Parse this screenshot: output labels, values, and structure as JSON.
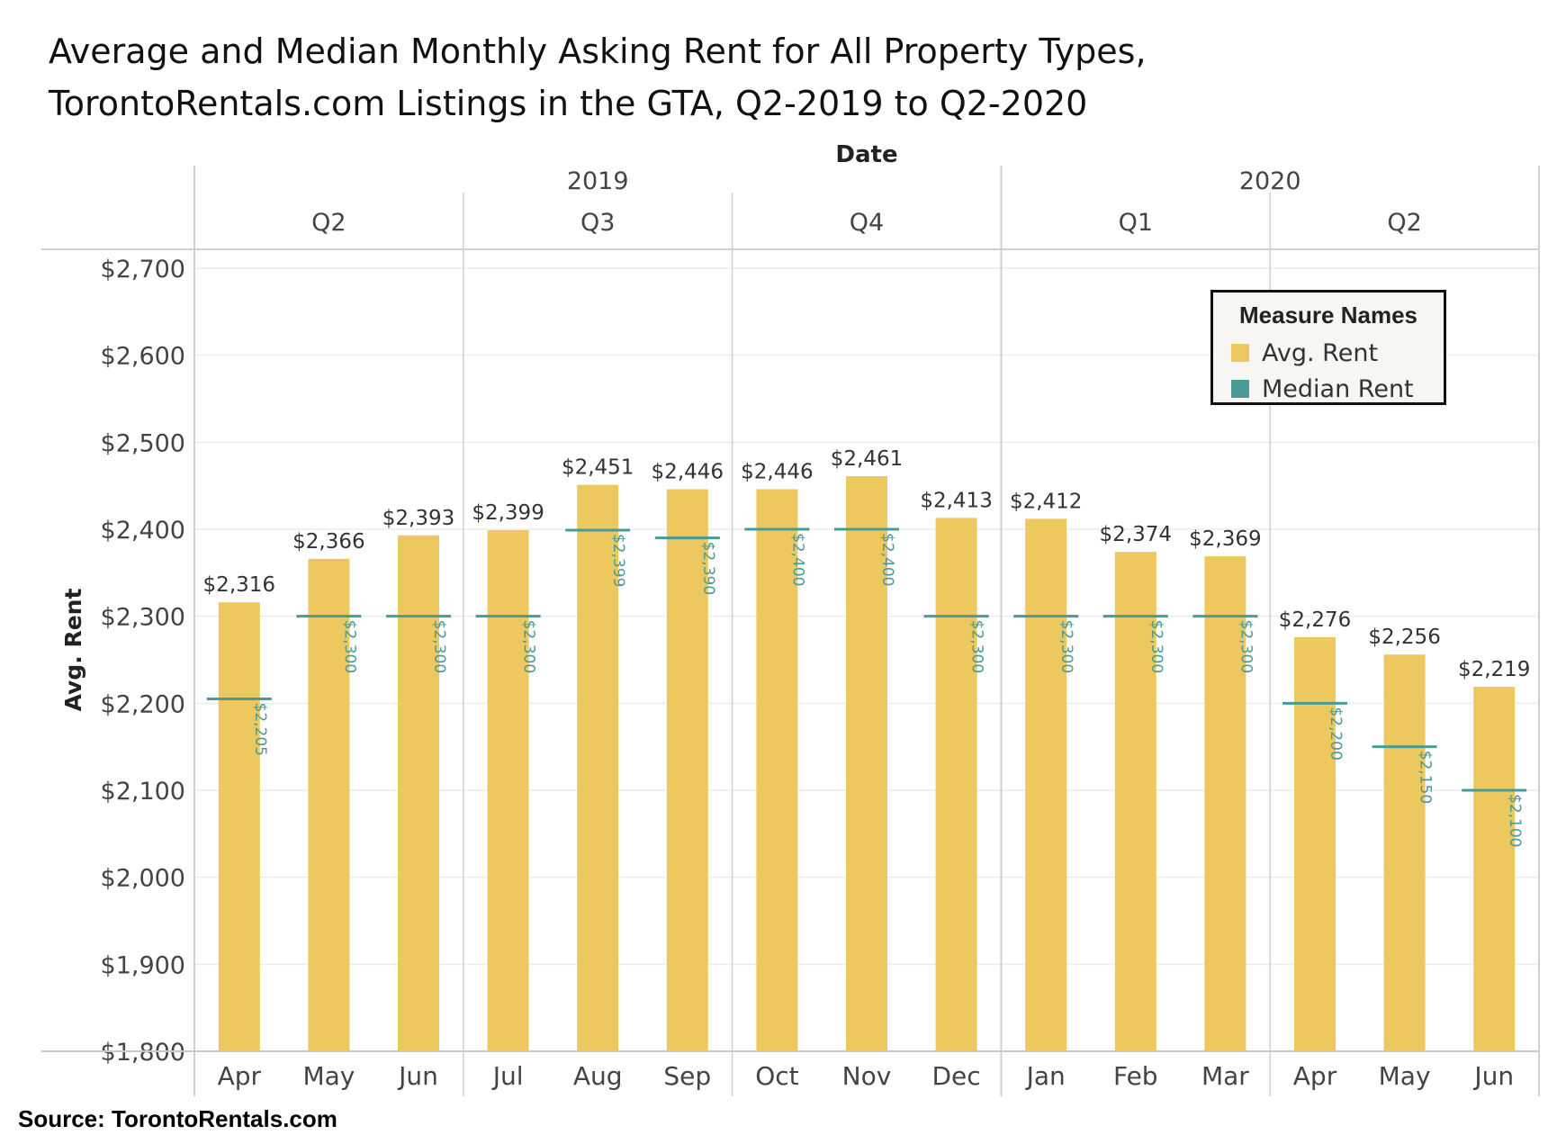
{
  "title_line1": "Average and Median Monthly Asking Rent for All Property Types,",
  "title_line2": "TorontoRentals.com Listings in the GTA, Q2-2019 to Q2-2020",
  "source": "Source: TorontoRentals.com",
  "colors": {
    "avg": "#EDC85E",
    "median": "#4A9A96",
    "grid": "#dddddd",
    "text": "#333333"
  },
  "legend": {
    "title": "Measure Names",
    "items": [
      "Avg. Rent",
      "Median Rent"
    ]
  },
  "chart_data": {
    "type": "bar",
    "title": "Average and Median Monthly Asking Rent for All Property Types, TorontoRentals.com Listings in the GTA, Q2-2019 to Q2-2020",
    "header_label": "Date",
    "ylabel": "Avg. Rent",
    "ylim": [
      1800,
      2700
    ],
    "yticks": [
      1800,
      1900,
      2000,
      2100,
      2200,
      2300,
      2400,
      2500,
      2600,
      2700
    ],
    "ytick_labels": [
      "$1,800",
      "$1,900",
      "$2,000",
      "$2,100",
      "$2,200",
      "$2,300",
      "$2,400",
      "$2,500",
      "$2,600",
      "$2,700"
    ],
    "years": [
      {
        "label": "2019",
        "months": 9
      },
      {
        "label": "2020",
        "months": 6
      }
    ],
    "quarters": [
      {
        "label": "Q2",
        "months": 3
      },
      {
        "label": "Q3",
        "months": 3
      },
      {
        "label": "Q4",
        "months": 3
      },
      {
        "label": "Q1",
        "months": 3
      },
      {
        "label": "Q2",
        "months": 3
      }
    ],
    "categories": [
      "Apr",
      "May",
      "Jun",
      "Jul",
      "Aug",
      "Sep",
      "Oct",
      "Nov",
      "Dec",
      "Jan",
      "Feb",
      "Mar",
      "Apr",
      "May",
      "Jun"
    ],
    "series": [
      {
        "name": "Avg. Rent",
        "values": [
          2316,
          2366,
          2393,
          2399,
          2451,
          2446,
          2446,
          2461,
          2413,
          2412,
          2374,
          2369,
          2276,
          2256,
          2219
        ],
        "labels": [
          "$2,316",
          "$2,366",
          "$2,393",
          "$2,399",
          "$2,451",
          "$2,446",
          "$2,446",
          "$2,461",
          "$2,413",
          "$2,412",
          "$2,374",
          "$2,369",
          "$2,276",
          "$2,256",
          "$2,219"
        ]
      },
      {
        "name": "Median Rent",
        "values": [
          2205,
          2300,
          2300,
          2300,
          2399,
          2390,
          2400,
          2400,
          2300,
          2300,
          2300,
          2300,
          2200,
          2150,
          2100
        ],
        "labels": [
          "$2,205",
          "$2,300",
          "$2,300",
          "$2,300",
          "$2,399",
          "$2,390",
          "$2,400",
          "$2,400",
          "$2,300",
          "$2,300",
          "$2,300",
          "$2,300",
          "$2,200",
          "$2,150",
          "$2,100"
        ]
      }
    ]
  }
}
